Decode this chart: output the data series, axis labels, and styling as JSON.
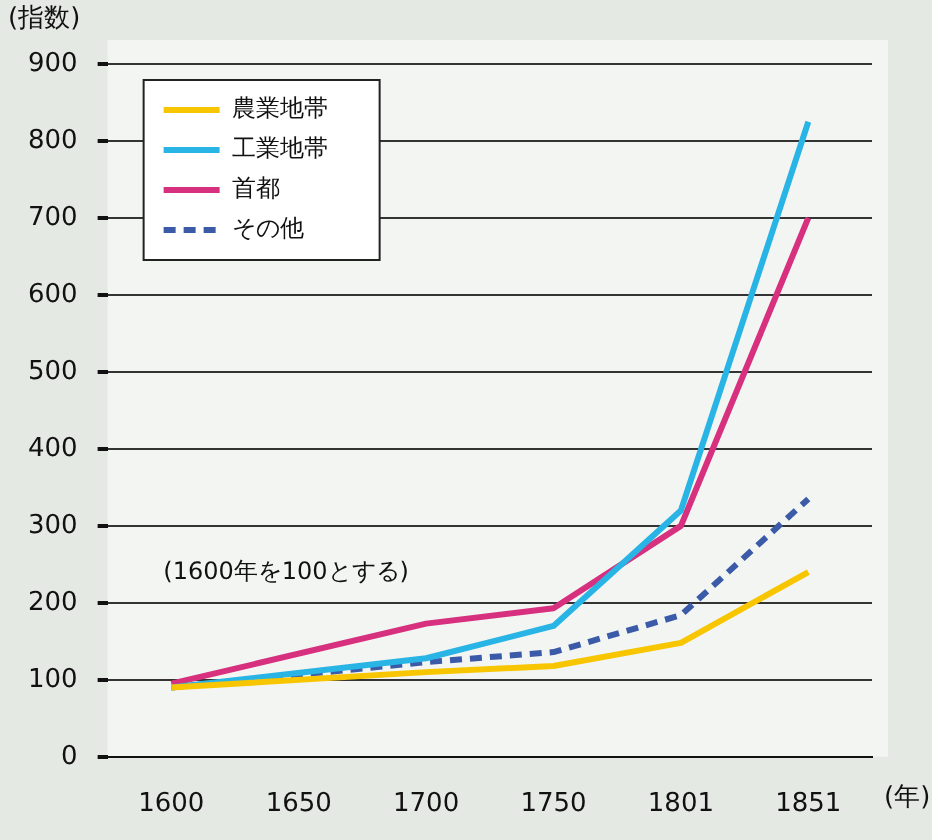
{
  "chart_data": {
    "type": "line",
    "ylabel": "(指数)",
    "xlabel": "(年)",
    "categories": [
      "1600",
      "1650",
      "1700",
      "1750",
      "1801",
      "1851"
    ],
    "series": [
      {
        "name": "農業地帯",
        "color": "#f7c600",
        "values": [
          90,
          null,
          110,
          118,
          148,
          240
        ]
      },
      {
        "name": "工業地帯",
        "color": "#29b4e6",
        "values": [
          90,
          null,
          128,
          170,
          320,
          825
        ]
      },
      {
        "name": "首都",
        "color": "#d6307f",
        "values": [
          95,
          null,
          173,
          193,
          300,
          700
        ]
      },
      {
        "name": "その他",
        "color": "#3b5aa8",
        "values": [
          90,
          null,
          123,
          136,
          184,
          335
        ],
        "line_style": "dashed"
      }
    ],
    "ylim": [
      0,
      900
    ],
    "yticks": [
      0,
      100,
      200,
      300,
      400,
      500,
      600,
      700,
      800,
      900
    ],
    "grid": "y",
    "legend": "top left",
    "marker": "none",
    "annotations": [
      "(1600年を100とする)"
    ]
  }
}
